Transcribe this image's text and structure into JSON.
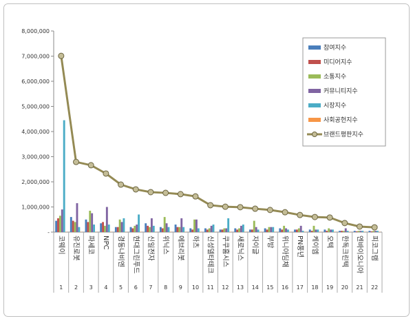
{
  "chart_data": {
    "type": "bar_line",
    "categories": [
      "코웨이",
      "유진로봇",
      "파세코",
      "NPC",
      "경동나비엔",
      "현대그린푸드",
      "신일전자",
      "위닉스",
      "에브리봇",
      "하츠",
      "신성델타테크",
      "쿠쿠홈시스",
      "새로닉스",
      "자이글",
      "부방",
      "위니아딤채",
      "PN풍년",
      "케이엠",
      "오텍",
      "한독크린텍",
      "엔바이오니아",
      "피코그램"
    ],
    "category_numbers": [
      1,
      2,
      3,
      4,
      5,
      6,
      7,
      8,
      9,
      10,
      11,
      12,
      13,
      14,
      15,
      16,
      17,
      18,
      19,
      20,
      21,
      22
    ],
    "ylim": [
      0,
      8000000
    ],
    "yticks": [
      {
        "value": 0,
        "label": "-"
      },
      {
        "value": 1000000,
        "label": "1,000,000"
      },
      {
        "value": 2000000,
        "label": "2,000,000"
      },
      {
        "value": 3000000,
        "label": "3,000,000"
      },
      {
        "value": 4000000,
        "label": "4,000,000"
      },
      {
        "value": 5000000,
        "label": "5,000,000"
      },
      {
        "value": 6000000,
        "label": "6,000,000"
      },
      {
        "value": 7000000,
        "label": "7,000,000"
      },
      {
        "value": 8000000,
        "label": "8,000,000"
      }
    ],
    "legend_position": "upper right",
    "series": [
      {
        "name": "참여지수",
        "type": "bar",
        "color": "#4a7ebb",
        "values": [
          450000,
          600000,
          500000,
          350000,
          200000,
          200000,
          350000,
          200000,
          300000,
          150000,
          150000,
          100000,
          150000,
          100000,
          150000,
          150000,
          100000,
          100000,
          100000,
          50000,
          50000,
          50000
        ]
      },
      {
        "name": "미디어지수",
        "type": "bar",
        "color": "#c0504d",
        "values": [
          550000,
          450000,
          400000,
          400000,
          200000,
          150000,
          250000,
          150000,
          200000,
          100000,
          100000,
          100000,
          100000,
          100000,
          100000,
          100000,
          100000,
          50000,
          50000,
          50000,
          30000,
          30000
        ]
      },
      {
        "name": "소통지수",
        "type": "bar",
        "color": "#9bbb59",
        "values": [
          650000,
          400000,
          850000,
          250000,
          500000,
          250000,
          200000,
          600000,
          200000,
          500000,
          150000,
          150000,
          150000,
          450000,
          200000,
          250000,
          150000,
          250000,
          150000,
          50000,
          50000,
          50000
        ]
      },
      {
        "name": "커뮤니티지수",
        "type": "bar",
        "color": "#8064a2",
        "values": [
          900000,
          1150000,
          750000,
          1000000,
          400000,
          300000,
          550000,
          350000,
          550000,
          500000,
          250000,
          150000,
          250000,
          200000,
          200000,
          150000,
          250000,
          100000,
          100000,
          150000,
          50000,
          50000
        ]
      },
      {
        "name": "시장지수",
        "type": "bar",
        "color": "#4bacc6",
        "values": [
          4450000,
          200000,
          300000,
          300000,
          550000,
          700000,
          250000,
          200000,
          200000,
          150000,
          300000,
          550000,
          300000,
          100000,
          200000,
          100000,
          50000,
          100000,
          100000,
          50000,
          50000,
          50000
        ]
      },
      {
        "name": "사회공헌지수",
        "type": "bar",
        "color": "#f79646",
        "values": [
          10000,
          10000,
          10000,
          10000,
          10000,
          10000,
          10000,
          10000,
          10000,
          10000,
          10000,
          10000,
          10000,
          10000,
          10000,
          10000,
          10000,
          10000,
          10000,
          10000,
          10000,
          10000
        ]
      },
      {
        "name": "브랜드평판지수",
        "type": "line",
        "color": "#948a54",
        "values": [
          7010000,
          2790000,
          2660000,
          2330000,
          1890000,
          1700000,
          1590000,
          1560000,
          1510000,
          1420000,
          1070000,
          1010000,
          990000,
          930000,
          880000,
          790000,
          680000,
          600000,
          580000,
          360000,
          220000,
          190000
        ]
      }
    ]
  }
}
